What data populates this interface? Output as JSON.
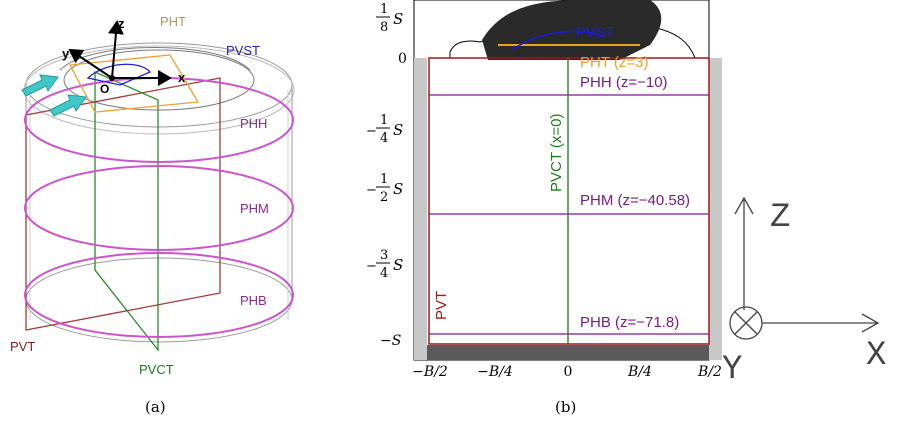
{
  "panel_a": {
    "caption": "(a)",
    "labels": {
      "pht": "PHT",
      "pvst": "PVST",
      "phh": "PHH",
      "phm": "PHM",
      "phb": "PHB",
      "pvt": "PVT",
      "pvct": "PVCT"
    },
    "axes": {
      "z": "z",
      "y": "y",
      "x": "x",
      "origin": "O"
    },
    "colors": {
      "pht": "#b8925a",
      "pvst": "#1f1fb0",
      "ph": "#8b2b8b",
      "pvt": "#7a1e1e",
      "pvct": "#1b7a1b",
      "arrow": "#40c8c8"
    }
  },
  "panel_b": {
    "caption": "(b)",
    "y_ticks": {
      "eighth_num": "1",
      "eighth_den": "8",
      "eighth_sym": "S",
      "zero": "0",
      "q1_sign": "−",
      "q1_num": "1",
      "q1_den": "4",
      "q1_sym": "S",
      "h_sign": "−",
      "h_num": "1",
      "h_den": "2",
      "h_sym": "S",
      "q3_sign": "−",
      "q3_num": "3",
      "q3_den": "4",
      "q3_sym": "S",
      "full": "−S"
    },
    "x_ticks": [
      "−B/2",
      "−B/4",
      "0",
      "B/4",
      "B/2"
    ],
    "plane_labels": {
      "pvst": "PVST",
      "pht": "PHT (z=3)",
      "phh": "PHH (z=−10)",
      "phm": "PHM (z=−40.58)",
      "phb": "PHB (z=−71.8)",
      "pvct": "PVCT (x=0)",
      "pvt": "PVT"
    },
    "colors": {
      "pvt": "#a01818",
      "ph": "#7a1a8a",
      "pvct": "#1b7a1b",
      "pht": "#f0a020",
      "pvst": "#1a1ae0",
      "wall": "#c8c8c8",
      "floor": "#5a5a5a",
      "ship": "#2a2a2a"
    }
  },
  "axis_icon": {
    "z": "Z",
    "x": "X",
    "y": "Y"
  }
}
